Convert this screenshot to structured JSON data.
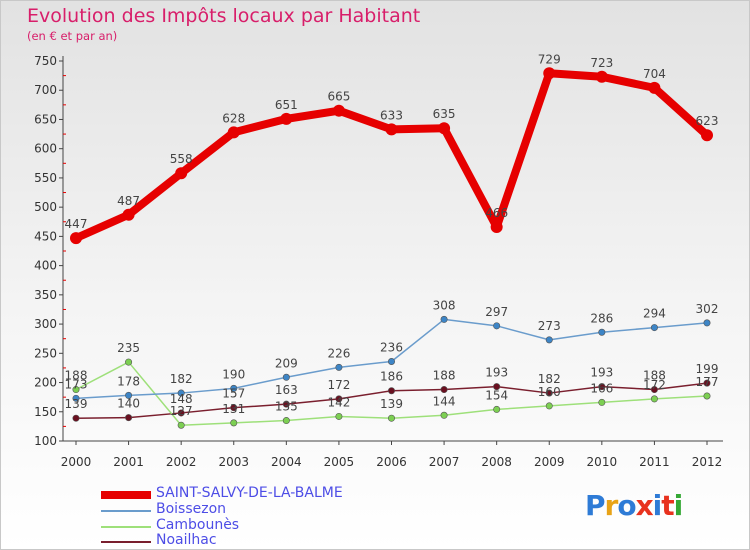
{
  "header": {
    "title": "Evolution des Impôts locaux par Habitant",
    "subtitle": "(en € et par an)"
  },
  "logo": {
    "text": "Proxiti",
    "colors": [
      "#2e7bd6",
      "#e8a317",
      "#2e7bd6",
      "#e8321e",
      "#2e7bd6",
      "#e8321e",
      "#35a835"
    ]
  },
  "chart_data": {
    "type": "line",
    "title": "Evolution des Impôts locaux par Habitant",
    "subtitle": "(en € et par an)",
    "x": [
      "2000",
      "2001",
      "2002",
      "2003",
      "2004",
      "2005",
      "2006",
      "2007",
      "2008",
      "2009",
      "2010",
      "2011",
      "2012"
    ],
    "ylim": [
      100,
      750
    ],
    "yticks": [
      100,
      150,
      200,
      250,
      300,
      350,
      400,
      450,
      500,
      550,
      600,
      650,
      700,
      750
    ],
    "grid": false,
    "legend": "bottom-left",
    "series": [
      {
        "name": "SAINT-SALVY-DE-LA-BALME",
        "color": "#e60000",
        "marker": "#e60000",
        "thick": true,
        "values": [
          447,
          487,
          558,
          628,
          651,
          665,
          633,
          635,
          466,
          729,
          723,
          704,
          623
        ]
      },
      {
        "name": "Boissezon",
        "color": "#6a9ccc",
        "marker": "#3d85c6",
        "values": [
          173,
          178,
          182,
          190,
          209,
          226,
          236,
          308,
          297,
          273,
          286,
          294,
          302
        ]
      },
      {
        "name": "Cambounès",
        "color": "#9ee07a",
        "marker": "#7ccf52",
        "values": [
          188,
          235,
          127,
          131,
          135,
          142,
          139,
          144,
          154,
          160,
          166,
          172,
          177
        ]
      },
      {
        "name": "Noailhac",
        "color": "#7a1f2e",
        "marker": "#6a1020",
        "values": [
          139,
          140,
          148,
          157,
          163,
          172,
          186,
          188,
          193,
          182,
          193,
          188,
          199
        ]
      }
    ]
  }
}
